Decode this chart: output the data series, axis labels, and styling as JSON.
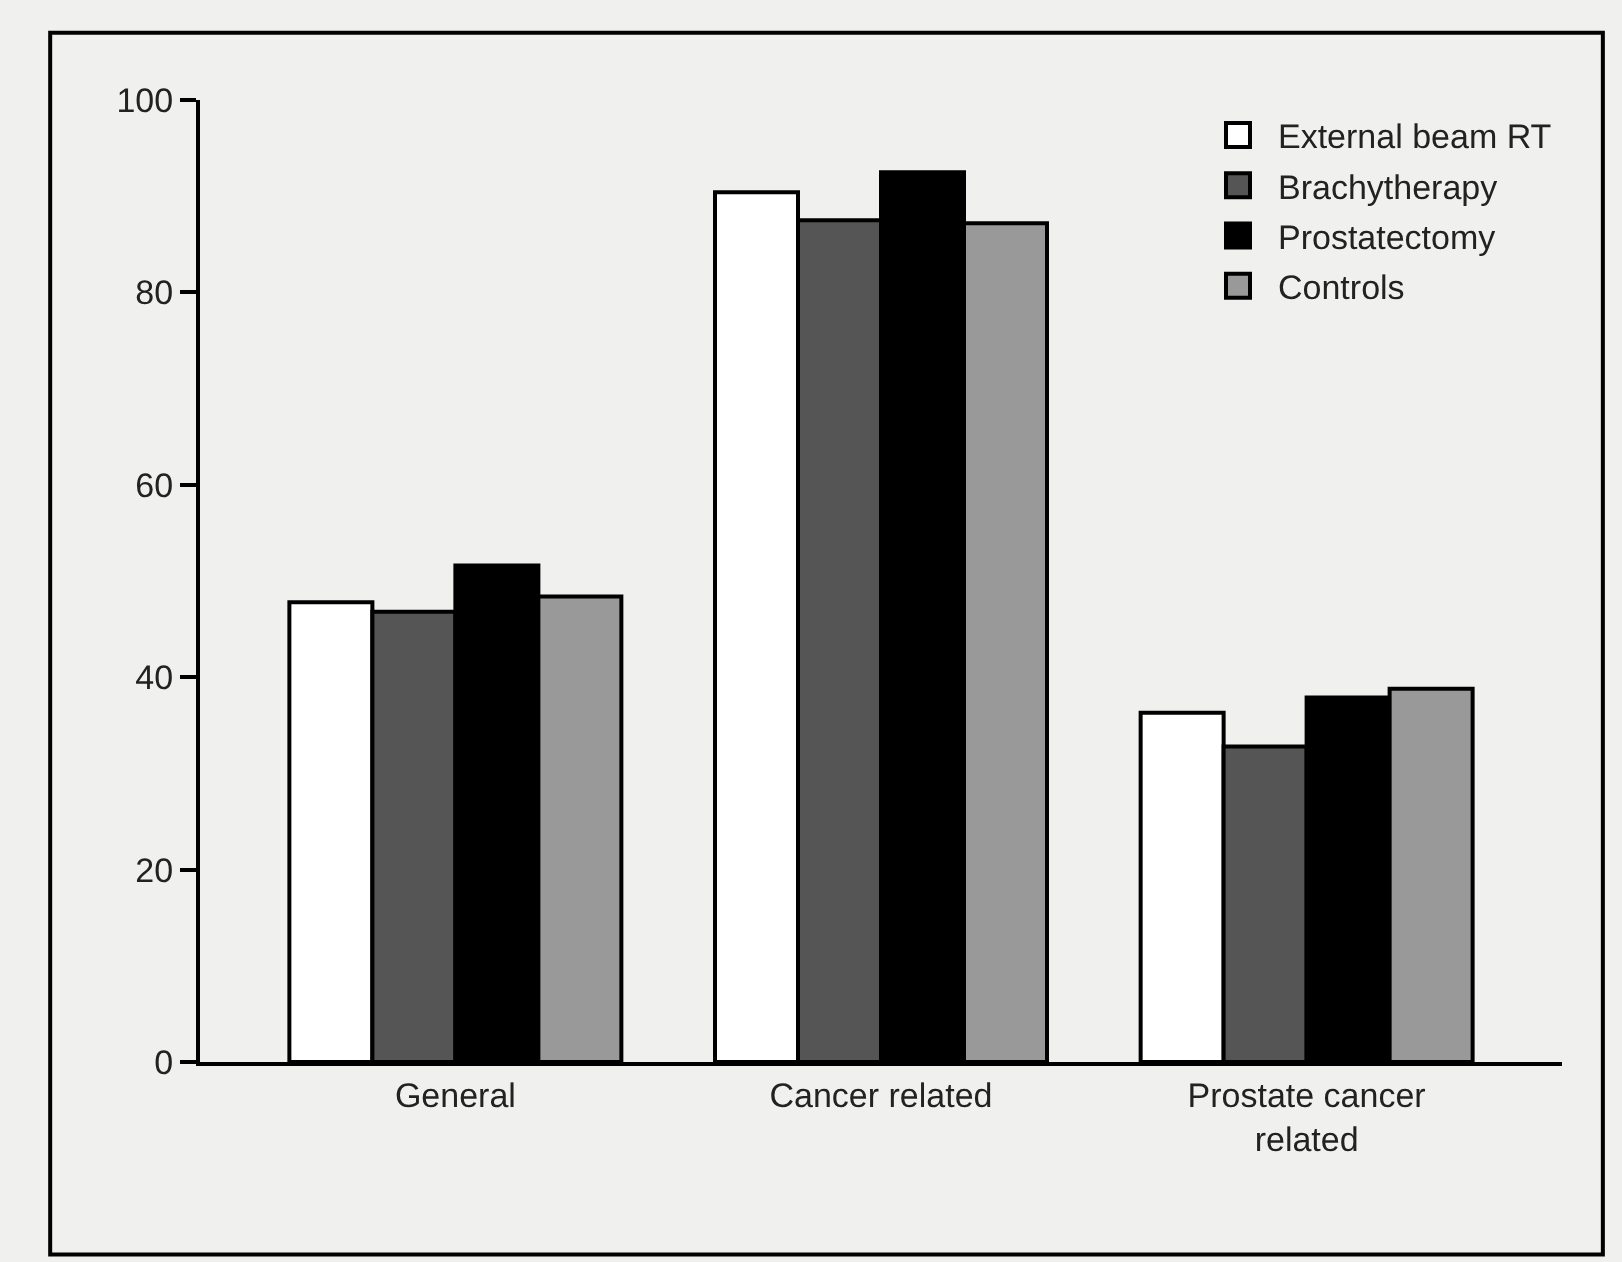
{
  "chart_data": {
    "type": "bar",
    "categories": [
      "General",
      "Cancer related",
      "Prostate cancer\nrelated"
    ],
    "series": [
      {
        "name": "External beam RT",
        "color": "#ffffff",
        "values": [
          47.8,
          90.4,
          36.3
        ]
      },
      {
        "name": "Brachytherapy",
        "color": "#555555",
        "values": [
          46.8,
          87.5,
          32.8
        ]
      },
      {
        "name": "Prostatectomy",
        "color": "#000000",
        "values": [
          51.6,
          92.5,
          37.9
        ]
      },
      {
        "name": "Controls",
        "color": "#999999",
        "values": [
          48.4,
          87.2,
          38.8
        ]
      }
    ],
    "ylim": [
      0,
      100
    ],
    "yticks": [
      0,
      20,
      40,
      60,
      80,
      100
    ],
    "grid": false,
    "legend": "top right"
  }
}
